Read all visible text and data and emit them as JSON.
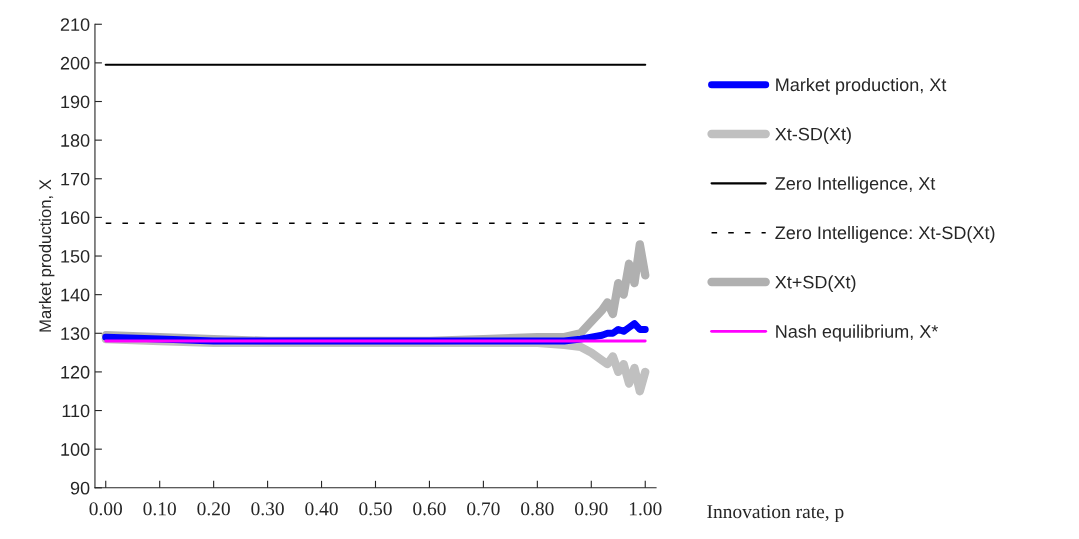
{
  "chart_data": {
    "type": "line",
    "xlabel": "Innovation rate, p",
    "ylabel": "Market production, X",
    "xlim": [
      -0.02,
      1.02
    ],
    "ylim": [
      90,
      210
    ],
    "xticks": [
      {
        "value": 0,
        "label": "0.00"
      },
      {
        "value": 0.1,
        "label": "0.10"
      },
      {
        "value": 0.2,
        "label": "0.20"
      },
      {
        "value": 0.3,
        "label": "0.30"
      },
      {
        "value": 0.4,
        "label": "0.40"
      },
      {
        "value": 0.5,
        "label": "0.50"
      },
      {
        "value": 0.6,
        "label": "0.60"
      },
      {
        "value": 0.7,
        "label": "0.70"
      },
      {
        "value": 0.8,
        "label": "0.80"
      },
      {
        "value": 0.9,
        "label": "0.90"
      },
      {
        "value": 1,
        "label": "1.00"
      }
    ],
    "yticks": [
      90,
      100,
      110,
      120,
      130,
      140,
      150,
      160,
      170,
      180,
      190,
      200,
      210
    ],
    "x": [
      0,
      0.1,
      0.2,
      0.3,
      0.4,
      0.5,
      0.6,
      0.7,
      0.8,
      0.85,
      0.88,
      0.9,
      0.92,
      0.93,
      0.94,
      0.95,
      0.96,
      0.97,
      0.98,
      0.99,
      1.0
    ],
    "legend": "right",
    "grid": false,
    "series": [
      {
        "name": "Market production, Xt",
        "color": "#0000ff",
        "values": [
          129,
          128.5,
          128,
          128,
          128,
          128,
          128,
          128,
          128,
          128,
          128.5,
          129,
          129.5,
          130,
          130,
          131,
          130.5,
          131.5,
          132.5,
          131,
          131
        ]
      },
      {
        "name": "Xt-SD(Xt)",
        "color": "#c0c0c0",
        "values": [
          128.5,
          128,
          127.5,
          127.5,
          127.5,
          127.5,
          127.5,
          127.5,
          127.5,
          127,
          126.5,
          125,
          123,
          122,
          124,
          120,
          122,
          117,
          121,
          115,
          120
        ]
      },
      {
        "name": "Zero Intelligence, Xt",
        "color": "#000000",
        "values": [
          199.5,
          199.5,
          199.5,
          199.5,
          199.5,
          199.5,
          199.5,
          199.5,
          199.5,
          199.5,
          199.5,
          199.5,
          199.5,
          199.5,
          199.5,
          199.5,
          199.5,
          199.5,
          199.5,
          199.5,
          199.5
        ]
      },
      {
        "name": "Zero Intelligence: Xt-SD(Xt)",
        "color": "#000000",
        "line_style": "dashed",
        "values": [
          158.5,
          158.5,
          158.5,
          158.5,
          158.5,
          158.5,
          158.5,
          158.5,
          158.5,
          158.5,
          158.5,
          158.5,
          158.5,
          158.5,
          158.5,
          158.5,
          158.5,
          158.5,
          158.5,
          158.5,
          158.5
        ]
      },
      {
        "name": "Xt+SD(Xt)",
        "color": "#b0b0b0",
        "values": [
          129.5,
          129,
          128.5,
          128,
          128,
          128,
          128,
          128.5,
          129,
          129,
          130,
          133,
          136,
          138,
          135,
          143,
          140,
          148,
          143,
          153,
          145
        ]
      },
      {
        "name": "Nash equilibrium, X*",
        "color": "#ff00ff",
        "values": [
          128,
          128,
          128,
          128,
          128,
          128,
          128,
          128,
          128,
          128,
          128,
          128,
          128,
          128,
          128,
          128,
          128,
          128,
          128,
          128,
          128
        ]
      }
    ]
  }
}
